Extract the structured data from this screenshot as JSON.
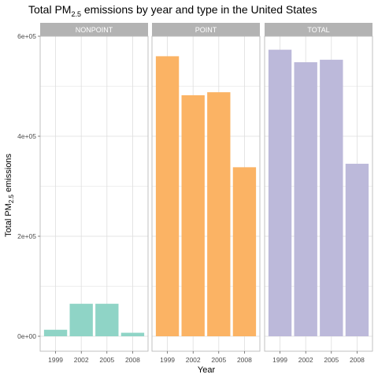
{
  "chart_data": {
    "type": "bar",
    "title_prefix": "Total PM",
    "title_subscript": "2.5",
    "title_suffix": " emissions by year and type in the United States",
    "xlabel": "Year",
    "ylabel_prefix": "Total PM",
    "ylabel_subscript": "2.5",
    "ylabel_suffix": " emissions",
    "categories": [
      "1999",
      "2002",
      "2005",
      "2008"
    ],
    "ylim": [
      0,
      600000
    ],
    "yticks": [
      0,
      200000,
      400000,
      600000
    ],
    "ytick_labels": [
      "0e+00",
      "2e+05",
      "4e+05",
      "6e+05"
    ],
    "grid": true,
    "legend": "none",
    "panels": [
      {
        "name": "NONPOINT",
        "color": "#8fd4c6",
        "values": [
          13000,
          65000,
          65000,
          7000
        ]
      },
      {
        "name": "POINT",
        "color": "#fbb364",
        "values": [
          560000,
          482000,
          488000,
          338000
        ]
      },
      {
        "name": "TOTAL",
        "color": "#bcb9da",
        "values": [
          573000,
          548000,
          553000,
          345000
        ]
      }
    ]
  },
  "colors": {
    "strip_bg": "#b3b3b3",
    "strip_text": "#ffffff",
    "grid": "#dedede",
    "axis_text": "#4d4d4d"
  }
}
